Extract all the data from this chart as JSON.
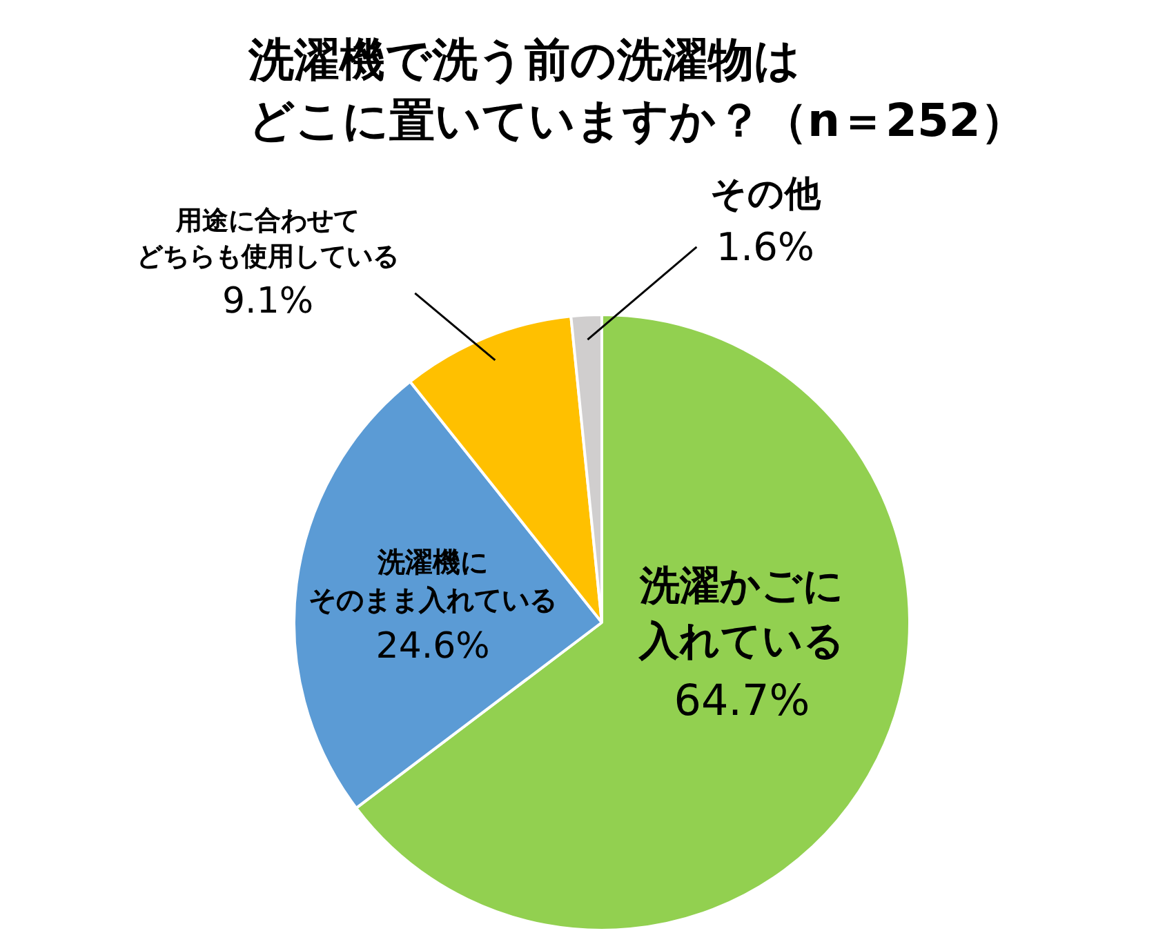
{
  "chart_data": {
    "type": "pie",
    "title": "洗濯機で洗う前の洗濯物はどこに置いていますか？（n＝252）",
    "categories": [
      "洗濯かごに入れている",
      "洗濯機にそのまま入れている",
      "用途に合わせてどちらも使用している",
      "その他"
    ],
    "values": [
      64.7,
      24.6,
      9.1,
      1.6
    ],
    "colors": [
      "#92d050",
      "#5b9bd5",
      "#ffc000",
      "#d0cece"
    ],
    "value_labels": [
      "64.7%",
      "24.6%",
      "9.1%",
      "1.6%"
    ]
  }
}
